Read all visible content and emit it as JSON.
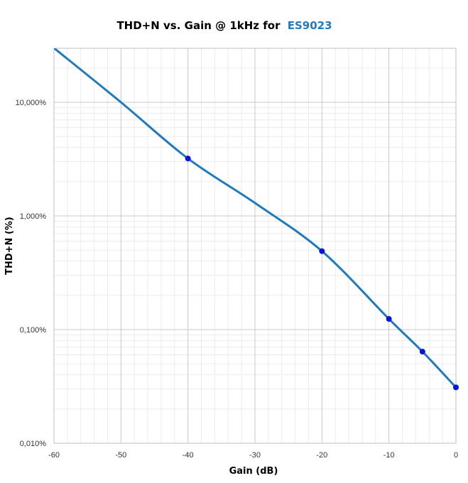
{
  "chart_data": {
    "type": "line",
    "title": "THD+N vs. Gain @ 1kHz for",
    "title_highlight": "ES9023",
    "title_highlight_color": "#1f7ac0",
    "xlabel": "Gain (dB)",
    "ylabel": "THD+N  (%)",
    "x_scale": "linear",
    "y_scale": "log",
    "xlim": [
      -60,
      0
    ],
    "ylim": [
      0.01,
      30
    ],
    "grid": true,
    "x_ticks": [
      -60,
      -50,
      -40,
      -30,
      -20,
      -10,
      0
    ],
    "x_tick_labels": [
      "-60",
      "-50",
      "-40",
      "-30",
      "-20",
      "-10",
      "0"
    ],
    "y_ticks": [
      0.01,
      0.1,
      1,
      10
    ],
    "y_tick_labels": [
      "0,010%",
      "0,100%",
      "1,000%",
      "10,000%"
    ],
    "series": [
      {
        "color": "#1f7ac0",
        "marker_color": "#0a14d8",
        "x": [
          -60,
          -50,
          -40,
          -30,
          -20,
          -10,
          -5,
          0
        ],
        "y": [
          30,
          10,
          3.2,
          1.3,
          0.49,
          0.124,
          0.064,
          0.031
        ],
        "markers": [
          false,
          false,
          true,
          false,
          true,
          true,
          true,
          true
        ]
      }
    ]
  }
}
